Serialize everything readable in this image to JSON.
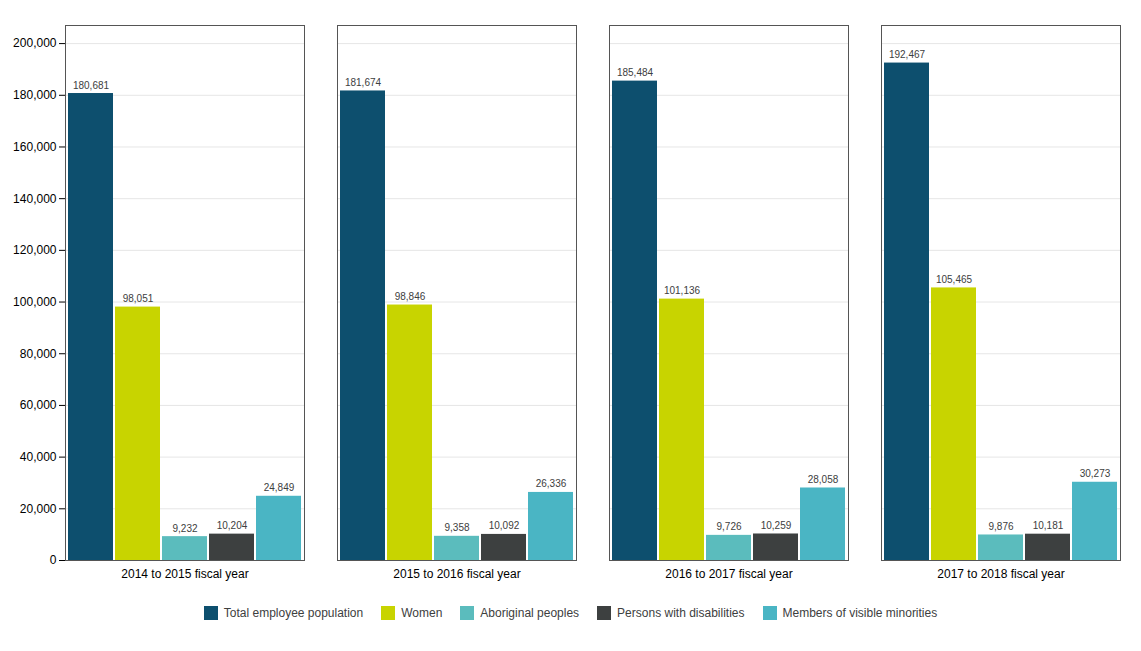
{
  "chart_data": {
    "type": "bar",
    "categories": [
      "2014 to 2015 fiscal year",
      "2015 to 2016 fiscal year",
      "2016 to 2017 fiscal year",
      "2017 to 2018 fiscal year"
    ],
    "series": [
      {
        "name": "Total employee population",
        "color": "#0d4f6e",
        "values": [
          180681,
          181674,
          185484,
          192467
        ],
        "value_labels": [
          "180,681",
          "181,674",
          "185,484",
          "192,467"
        ]
      },
      {
        "name": "Women",
        "color": "#c8d400",
        "values": [
          98051,
          98846,
          101136,
          105465
        ],
        "value_labels": [
          "98,051",
          "98,846",
          "101,136",
          "105,465"
        ]
      },
      {
        "name": "Aboriginal peoples",
        "color": "#5bbcbd",
        "values": [
          9232,
          9358,
          9726,
          9876
        ],
        "value_labels": [
          "9,232",
          "9,358",
          "9,726",
          "9,876"
        ]
      },
      {
        "name": "Persons with disabilities",
        "color": "#3d4040",
        "values": [
          10204,
          10092,
          10259,
          10181
        ],
        "value_labels": [
          "10,204",
          "10,092",
          "10,259",
          "10,181"
        ]
      },
      {
        "name": "Members of visible minorities",
        "color": "#4ab5c4",
        "values": [
          24849,
          26336,
          28058,
          30273
        ],
        "value_labels": [
          "24,849",
          "26,336",
          "28,058",
          "30,273"
        ]
      }
    ],
    "ylim": [
      0,
      207000
    ],
    "yticks": [
      0,
      {
        "value": 20000,
        "label": "20,000"
      },
      {
        "value": 40000,
        "label": "40,000"
      },
      {
        "value": 60000,
        "label": "60,000"
      },
      {
        "value": 80000,
        "label": "80,000"
      },
      {
        "value": 100000,
        "label": "100,000"
      },
      {
        "value": 120000,
        "label": "120,000"
      },
      {
        "value": 140000,
        "label": "140,000"
      },
      {
        "value": 160000,
        "label": "160,000"
      },
      {
        "value": 180000,
        "label": "180,000"
      },
      {
        "value": 200000,
        "label": "200,000"
      }
    ],
    "grid": true,
    "data_labels": true,
    "legend": "bottom"
  }
}
